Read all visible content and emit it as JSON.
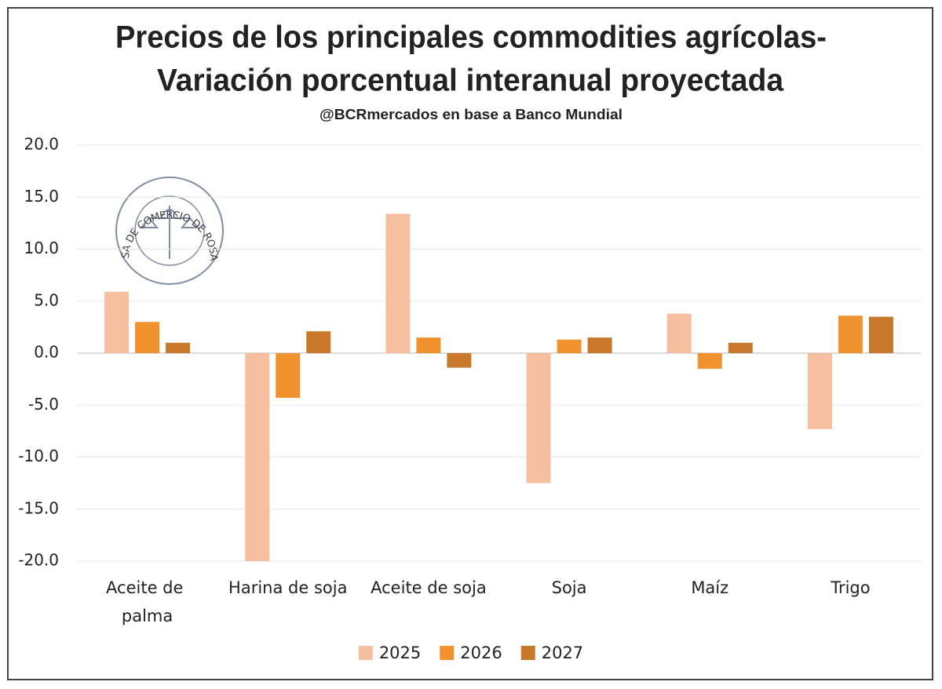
{
  "chart_data": {
    "type": "bar",
    "title": [
      "Precios de los principales commodities agrícolas-",
      "Variación porcentual interanual proyectada"
    ],
    "subtitle": "@BCRmercados en base a Banco Mundial",
    "logo_text": "BOLSA DE COMERCIO DE ROSARIO",
    "categories": [
      "Aceite de palma",
      "Harina de soja",
      "Aceite de soja",
      "Soja",
      "Maíz",
      "Trigo"
    ],
    "series": [
      {
        "name": "2025",
        "color": "#f6bfa0",
        "values": [
          5.9,
          -20.0,
          13.4,
          -12.5,
          3.8,
          -7.3
        ]
      },
      {
        "name": "2026",
        "color": "#f0922e",
        "values": [
          3.0,
          -4.3,
          1.5,
          1.3,
          -1.5,
          3.6
        ]
      },
      {
        "name": "2027",
        "color": "#c8782a",
        "values": [
          1.0,
          2.1,
          -1.4,
          1.5,
          1.0,
          3.5
        ]
      }
    ],
    "ylim": [
      -20,
      20
    ],
    "yticks": [
      {
        "value": -20,
        "label": "-20.0"
      },
      {
        "value": -15,
        "label": "-15.0"
      },
      {
        "value": -10,
        "label": "-10.0"
      },
      {
        "value": -5,
        "label": "-5.0"
      },
      {
        "value": 0,
        "label": "0.0"
      },
      {
        "value": 5,
        "label": "5.0"
      },
      {
        "value": 10,
        "label": "10.0"
      },
      {
        "value": 15,
        "label": "15.0"
      },
      {
        "value": 20,
        "label": "20.0"
      }
    ],
    "grid": true,
    "legend": "bottom"
  }
}
